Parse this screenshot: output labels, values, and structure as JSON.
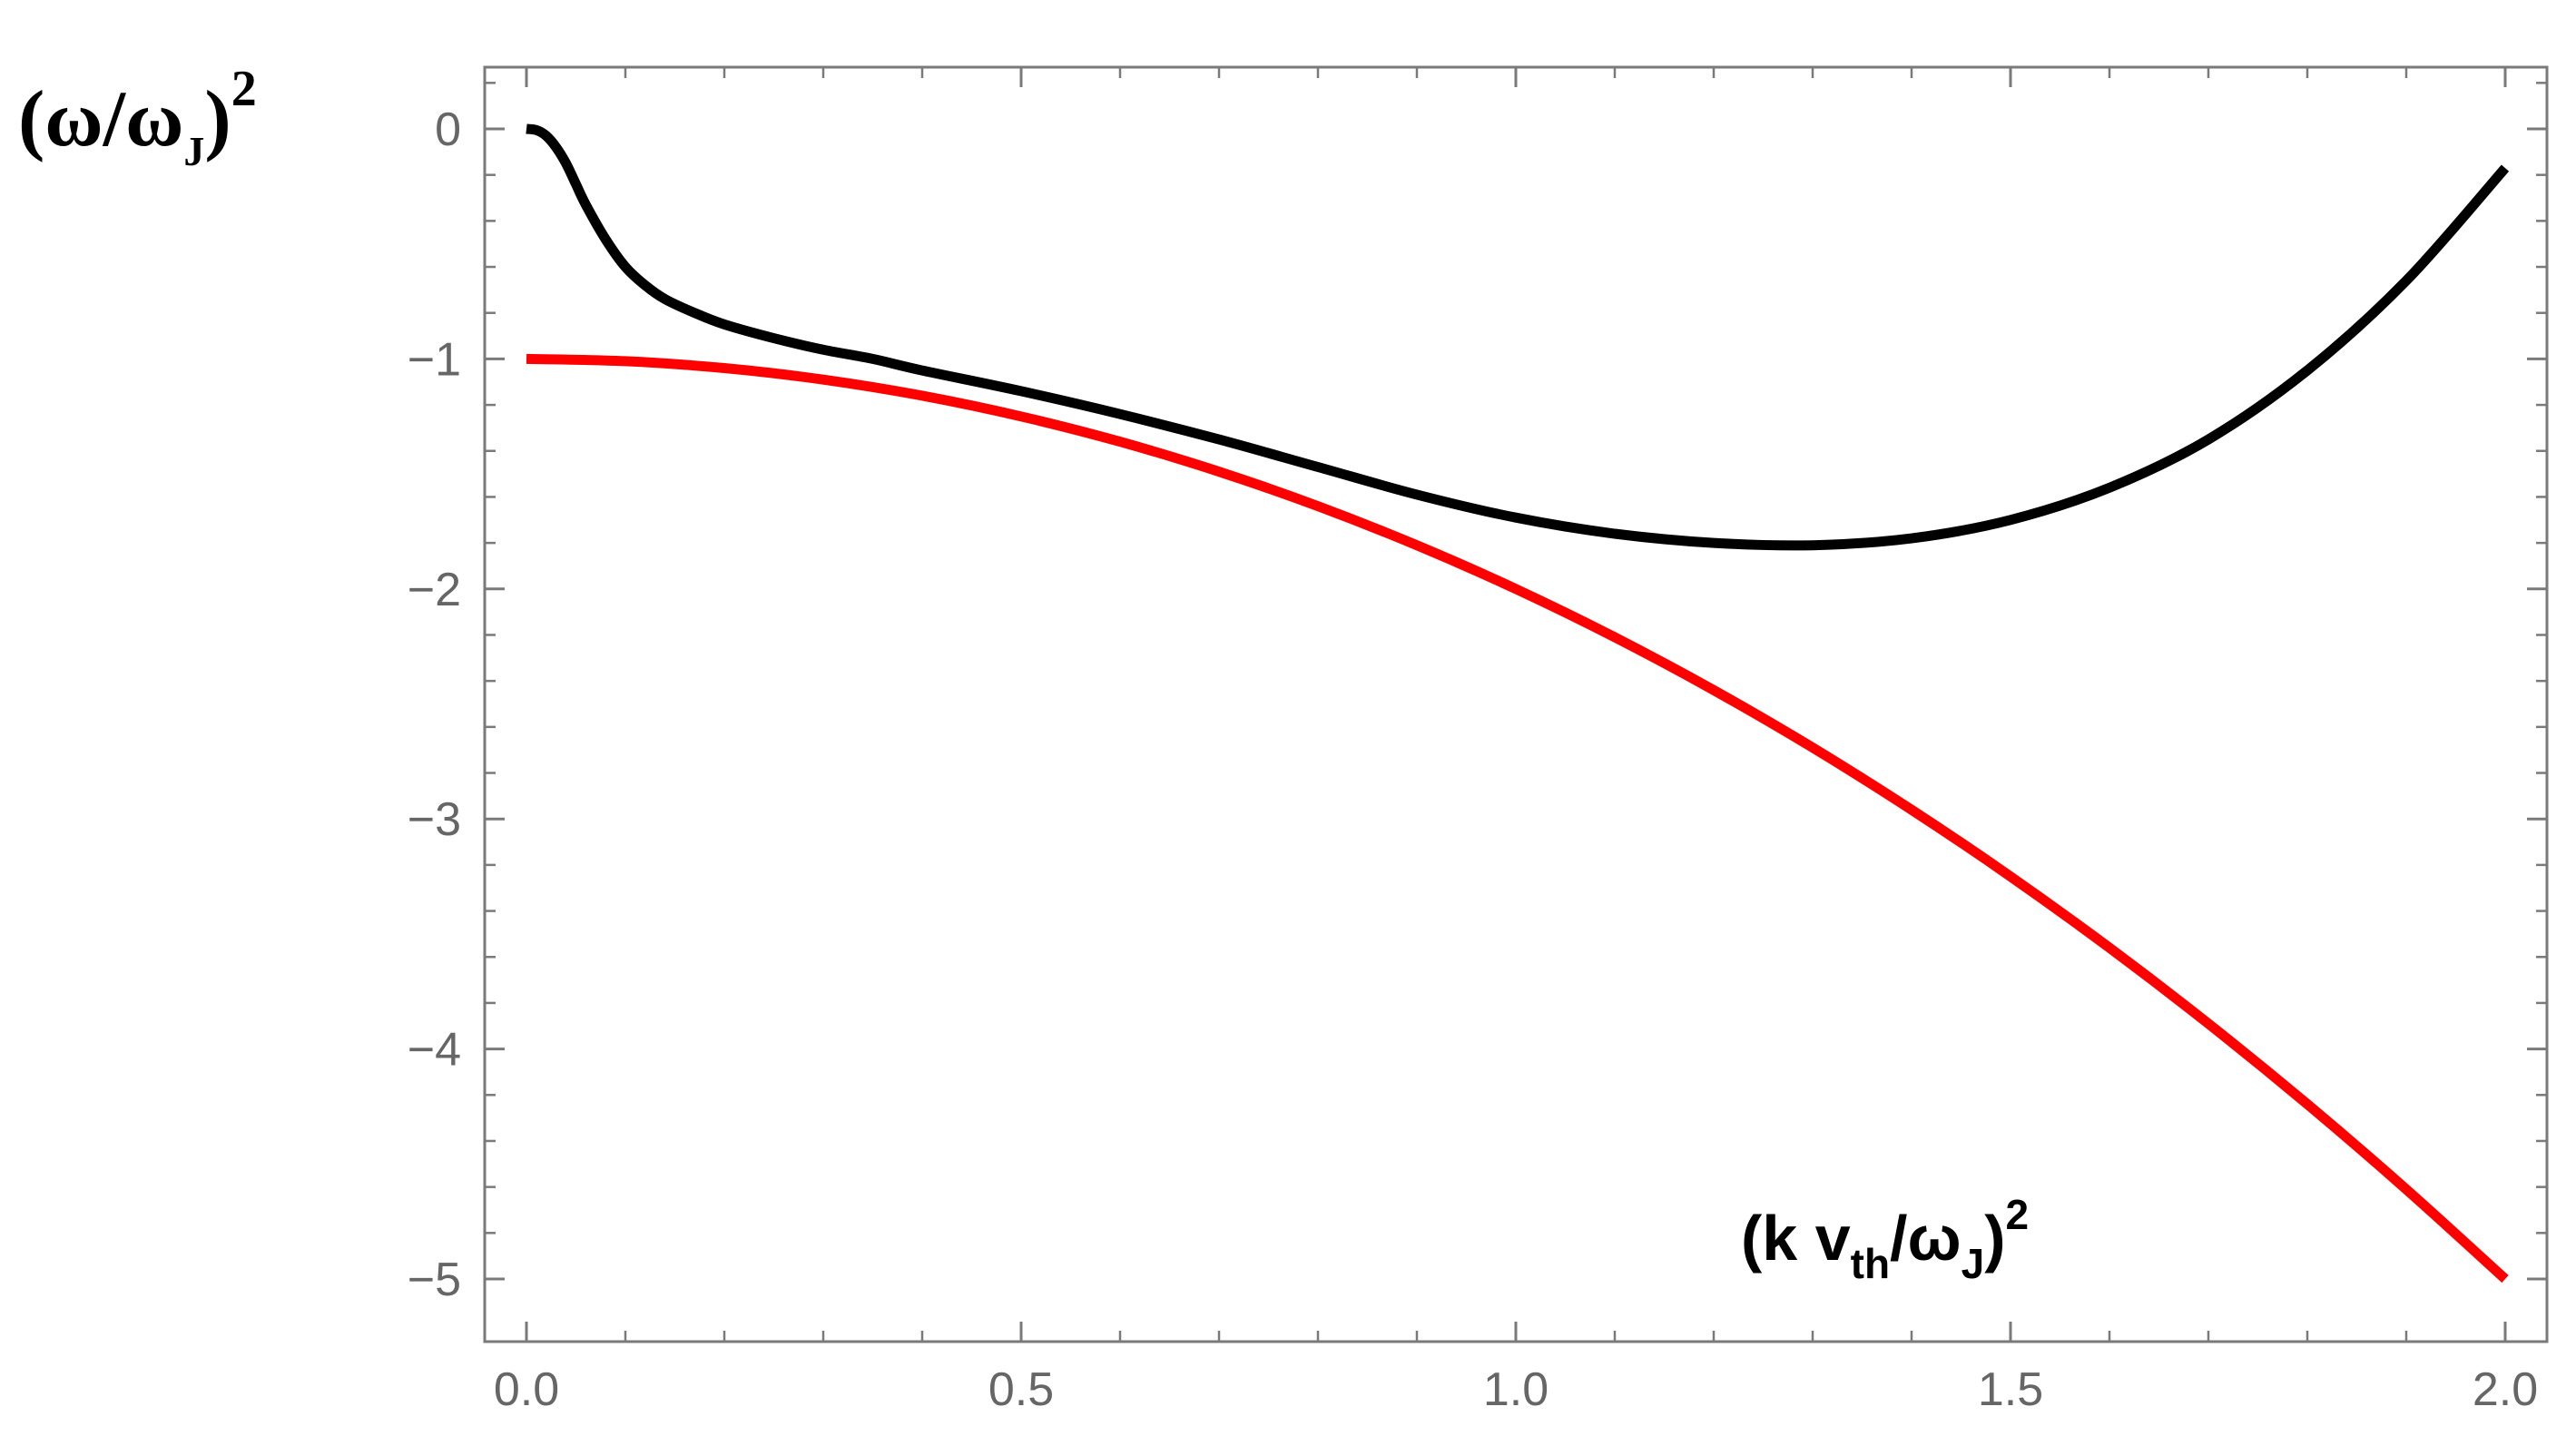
{
  "chart_data": {
    "type": "line",
    "xlim": [
      0.0,
      2.0
    ],
    "ylim": [
      -5,
      0
    ],
    "grid": false,
    "legend": "none",
    "ylabel": {
      "open": "(ω/ω",
      "sub": "J",
      "close": ")",
      "sup": "2"
    },
    "xlabel": {
      "open": "(k v",
      "sub1": "th",
      "mid": "/ω",
      "sub2": "J",
      "close": ")",
      "sup": "2"
    },
    "xticks": [
      {
        "value": 0.0,
        "label": "0.0"
      },
      {
        "value": 0.5,
        "label": "0.5"
      },
      {
        "value": 1.0,
        "label": "1.0"
      },
      {
        "value": 1.5,
        "label": "1.5"
      },
      {
        "value": 2.0,
        "label": "2.0"
      }
    ],
    "yticks": [
      {
        "value": 0,
        "label": "0"
      },
      {
        "value": -1,
        "label": "−1"
      },
      {
        "value": -2,
        "label": "−2"
      },
      {
        "value": -3,
        "label": "−3"
      },
      {
        "value": -4,
        "label": "−4"
      },
      {
        "value": -5,
        "label": "−5"
      }
    ],
    "series": [
      {
        "color": "#000000",
        "x": [
          0.0,
          0.01,
          0.02,
          0.03,
          0.04,
          0.05,
          0.06,
          0.08,
          0.1,
          0.12,
          0.14,
          0.17,
          0.2,
          0.25,
          0.3,
          0.35,
          0.4,
          0.5,
          0.6,
          0.7,
          0.8,
          0.9,
          1.0,
          1.1,
          1.2,
          1.3,
          1.4,
          1.5,
          1.6,
          1.7,
          1.8,
          1.9,
          2.0
        ],
        "y": [
          0.0,
          -0.005,
          -0.03,
          -0.08,
          -0.15,
          -0.24,
          -0.33,
          -0.48,
          -0.6,
          -0.68,
          -0.74,
          -0.8,
          -0.85,
          -0.91,
          -0.96,
          -1.0,
          -1.05,
          -1.14,
          -1.24,
          -1.35,
          -1.47,
          -1.59,
          -1.69,
          -1.76,
          -1.8,
          -1.81,
          -1.78,
          -1.7,
          -1.56,
          -1.35,
          -1.05,
          -0.66,
          -0.17
        ]
      },
      {
        "color": "#ff0000",
        "x": [
          0.0,
          0.1,
          0.2,
          0.3,
          0.4,
          0.5,
          0.6,
          0.7,
          0.8,
          0.9,
          1.0,
          1.1,
          1.2,
          1.3,
          1.4,
          1.5,
          1.6,
          1.7,
          1.8,
          1.9,
          2.0
        ],
        "y": [
          -1.0,
          -1.01,
          -1.04,
          -1.09,
          -1.16,
          -1.25,
          -1.36,
          -1.49,
          -1.64,
          -1.81,
          -2.0,
          -2.21,
          -2.44,
          -2.69,
          -2.96,
          -3.25,
          -3.56,
          -3.89,
          -4.24,
          -4.61,
          -5.0
        ]
      }
    ]
  }
}
